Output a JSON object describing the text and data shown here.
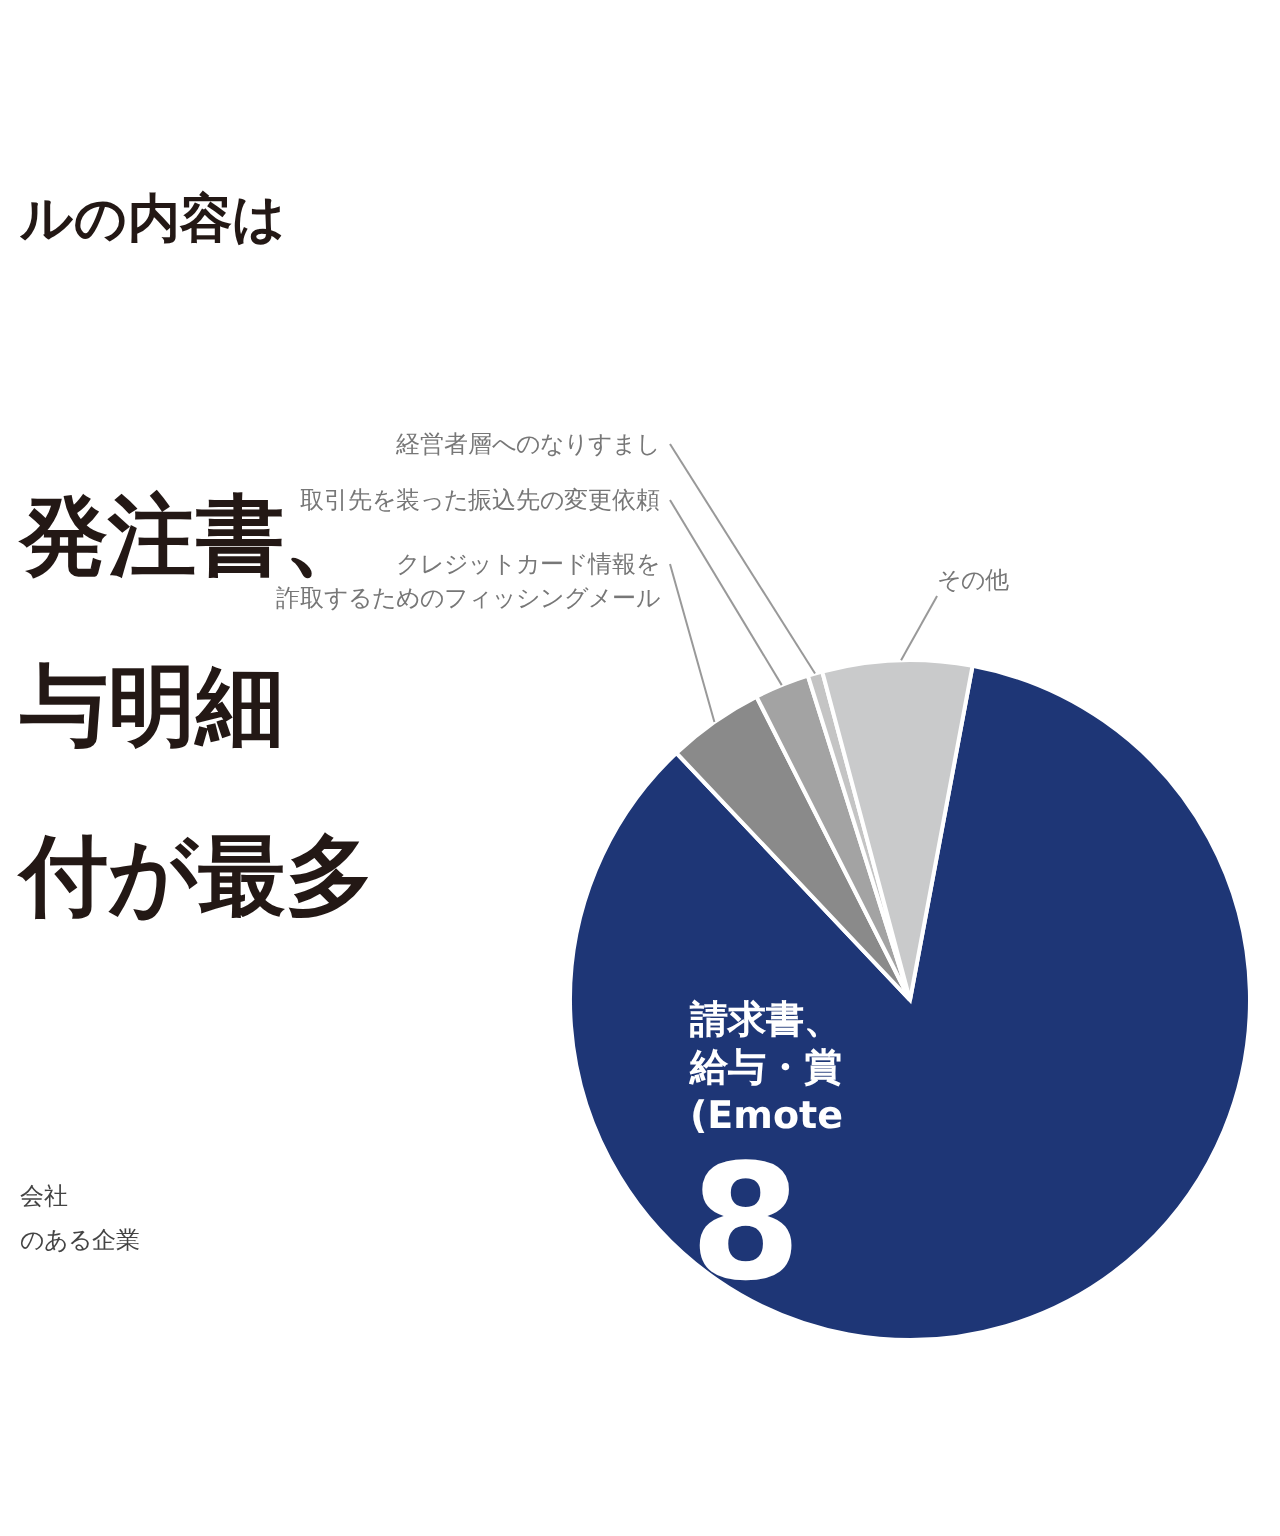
{
  "chart_data": {
    "type": "pie",
    "title": "ルの内容は",
    "categories": [
      "請求書、給与・賞(Emote",
      "クレジットカード情報を詐取するためのフィッシングメール",
      "取引先を装った振込先の変更依頼",
      "経営者層へのなりすまし",
      "その他"
    ],
    "values": [
      85,
      4.6,
      2.6,
      0.7,
      7.1
    ],
    "colors": [
      "#1e3676",
      "#8a8a8a",
      "#a3a3a3",
      "#c4c4c4",
      "#c9cacb"
    ],
    "annotations": [
      "発注書、",
      "与明細",
      "付が最多",
      "会社",
      "のある企業",
      "8"
    ]
  }
}
